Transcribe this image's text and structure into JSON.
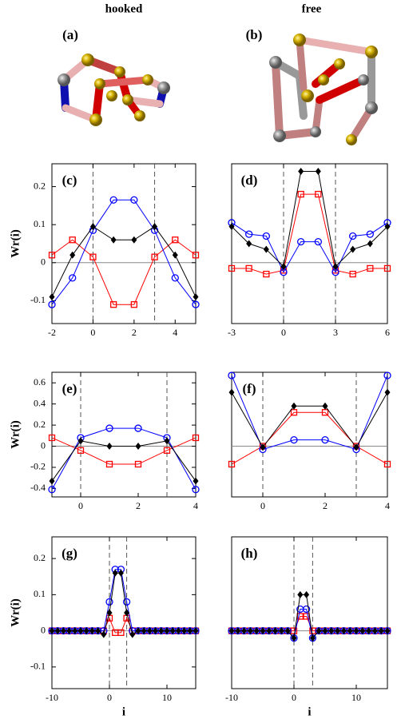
{
  "columns": [
    "hooked",
    "free"
  ],
  "structures": [
    "(a)",
    "(b)"
  ],
  "chart_data": [
    {
      "type": "line",
      "label": "(c)",
      "ylabel": "Wr(i)",
      "x": [
        -2,
        -1,
        0,
        1,
        2,
        3,
        4,
        5
      ],
      "xlim": [
        -2,
        5
      ],
      "xticks": [
        -2,
        0,
        2,
        4
      ],
      "ylim": [
        -0.16,
        0.26
      ],
      "yticks": [
        -0.1,
        0,
        0.1,
        0.2
      ],
      "vlines": [
        0,
        3
      ],
      "hline": 0,
      "series": [
        {
          "color": "#ff0000",
          "marker": "square",
          "values": [
            0.02,
            0.06,
            0.015,
            -0.11,
            -0.11,
            0.015,
            0.06,
            0.02
          ]
        },
        {
          "color": "#0000ff",
          "marker": "circle",
          "values": [
            -0.11,
            -0.04,
            0.085,
            0.165,
            0.165,
            0.085,
            -0.04,
            -0.11
          ]
        },
        {
          "color": "#000000",
          "marker": "diamond",
          "values": [
            -0.09,
            0.02,
            0.095,
            0.06,
            0.06,
            0.095,
            0.02,
            -0.09
          ]
        }
      ]
    },
    {
      "type": "line",
      "label": "(d)",
      "x": [
        -3,
        -2,
        -1,
        0,
        1,
        2,
        3,
        4,
        5,
        6
      ],
      "xlim": [
        -3,
        6
      ],
      "xticks": [
        -3,
        0,
        3,
        6
      ],
      "ylim": [
        -0.16,
        0.26
      ],
      "vlines": [
        0,
        3
      ],
      "hline": 0,
      "series": [
        {
          "color": "#ff0000",
          "marker": "square",
          "values": [
            -0.015,
            -0.015,
            -0.03,
            -0.02,
            0.18,
            0.18,
            -0.02,
            -0.03,
            -0.015,
            -0.015
          ]
        },
        {
          "color": "#0000ff",
          "marker": "circle",
          "values": [
            0.105,
            0.075,
            0.07,
            -0.025,
            0.055,
            0.055,
            -0.025,
            0.07,
            0.075,
            0.105
          ]
        },
        {
          "color": "#000000",
          "marker": "diamond",
          "values": [
            0.095,
            0.05,
            0.035,
            -0.01,
            0.24,
            0.24,
            -0.01,
            0.035,
            0.05,
            0.095
          ]
        }
      ]
    },
    {
      "type": "line",
      "label": "(e)",
      "ylabel": "Wr(i)",
      "x": [
        -1,
        0,
        1,
        2,
        3,
        4
      ],
      "xlim": [
        -1,
        4
      ],
      "xticks": [
        0,
        2,
        4
      ],
      "ylim": [
        -0.48,
        0.7
      ],
      "yticks": [
        -0.4,
        -0.2,
        0,
        0.2,
        0.4,
        0.6
      ],
      "vlines": [
        0,
        3
      ],
      "hline": 0,
      "series": [
        {
          "color": "#ff0000",
          "marker": "square",
          "values": [
            0.08,
            -0.04,
            -0.17,
            -0.17,
            -0.04,
            0.08
          ]
        },
        {
          "color": "#0000ff",
          "marker": "circle",
          "values": [
            -0.41,
            0.08,
            0.17,
            0.17,
            0.08,
            -0.41
          ]
        },
        {
          "color": "#000000",
          "marker": "diamond",
          "values": [
            -0.33,
            0.05,
            0,
            0,
            0.05,
            -0.33
          ]
        }
      ]
    },
    {
      "type": "line",
      "label": "(f)",
      "x": [
        -1,
        0,
        1,
        2,
        3,
        4
      ],
      "xlim": [
        -1,
        4
      ],
      "xticks": [
        0,
        2,
        4
      ],
      "ylim": [
        -0.48,
        0.7
      ],
      "vlines": [
        0,
        3
      ],
      "hline": 0,
      "series": [
        {
          "color": "#ff0000",
          "marker": "square",
          "values": [
            -0.17,
            0,
            0.32,
            0.32,
            0,
            -0.17
          ]
        },
        {
          "color": "#0000ff",
          "marker": "circle",
          "values": [
            0.67,
            -0.03,
            0.06,
            0.06,
            -0.03,
            0.67
          ]
        },
        {
          "color": "#000000",
          "marker": "diamond",
          "values": [
            0.51,
            -0.01,
            0.38,
            0.38,
            -0.01,
            0.51
          ]
        }
      ]
    },
    {
      "type": "line",
      "label": "(g)",
      "ylabel": "Wr(i)",
      "xlabel": "i",
      "x": [
        -10,
        -9,
        -8,
        -7,
        -6,
        -5,
        -4,
        -3,
        -2,
        -1,
        0,
        1,
        2,
        3,
        4,
        5,
        6,
        7,
        8,
        9,
        10,
        11,
        12,
        13,
        14,
        15
      ],
      "xlim": [
        -10,
        15
      ],
      "xticks": [
        -10,
        0,
        10
      ],
      "ylim": [
        -0.16,
        0.26
      ],
      "yticks": [
        -0.1,
        0,
        0.1,
        0.2
      ],
      "vlines": [
        0,
        3
      ],
      "hline": 0,
      "series": [
        {
          "color": "#ff0000",
          "marker": "square",
          "values": [
            0,
            0,
            0,
            0,
            0,
            0,
            0,
            0,
            0,
            0,
            0.035,
            -0.005,
            -0.005,
            0.035,
            0,
            0,
            0,
            0,
            0,
            0,
            0,
            0,
            0,
            0,
            0,
            0
          ]
        },
        {
          "color": "#0000ff",
          "marker": "circle",
          "values": [
            0,
            0,
            0,
            0,
            0,
            0,
            0,
            0,
            0,
            0,
            0.08,
            0.17,
            0.17,
            0.08,
            0,
            0,
            0,
            0,
            0,
            0,
            0,
            0,
            0,
            0,
            0,
            0
          ]
        },
        {
          "color": "#000000",
          "marker": "diamond",
          "values": [
            0,
            0,
            0,
            0,
            0,
            0,
            0,
            0,
            0,
            -0.01,
            0.05,
            0.16,
            0.16,
            0.05,
            -0.01,
            0,
            0,
            0,
            0,
            0,
            0,
            0,
            0,
            0,
            0,
            0
          ]
        }
      ]
    },
    {
      "type": "line",
      "label": "(h)",
      "xlabel": "i",
      "x": [
        -10,
        -9,
        -8,
        -7,
        -6,
        -5,
        -4,
        -3,
        -2,
        -1,
        0,
        1,
        2,
        3,
        4,
        5,
        6,
        7,
        8,
        9,
        10,
        11,
        12,
        13,
        14,
        15
      ],
      "xlim": [
        -10,
        15
      ],
      "xticks": [
        -10,
        0,
        10
      ],
      "ylim": [
        -0.16,
        0.26
      ],
      "vlines": [
        0,
        3
      ],
      "hline": 0,
      "series": [
        {
          "color": "#ff0000",
          "marker": "square",
          "values": [
            0,
            0,
            0,
            0,
            0,
            0,
            0,
            0,
            0,
            0,
            0,
            0.04,
            0.04,
            0,
            0,
            0,
            0,
            0,
            0,
            0,
            0,
            0,
            0,
            0,
            0,
            0
          ]
        },
        {
          "color": "#0000ff",
          "marker": "circle",
          "values": [
            0,
            0,
            0,
            0,
            0,
            0,
            0,
            0,
            0,
            0,
            -0.02,
            0.06,
            0.06,
            -0.02,
            0,
            0,
            0,
            0,
            0,
            0,
            0,
            0,
            0,
            0,
            0,
            0
          ]
        },
        {
          "color": "#000000",
          "marker": "diamond",
          "values": [
            0,
            0,
            0,
            0,
            0,
            0,
            0,
            0,
            0,
            0,
            -0.02,
            0.1,
            0.1,
            -0.02,
            0,
            0,
            0,
            0,
            0,
            0,
            0,
            0,
            0,
            0,
            0,
            0
          ]
        }
      ]
    }
  ]
}
